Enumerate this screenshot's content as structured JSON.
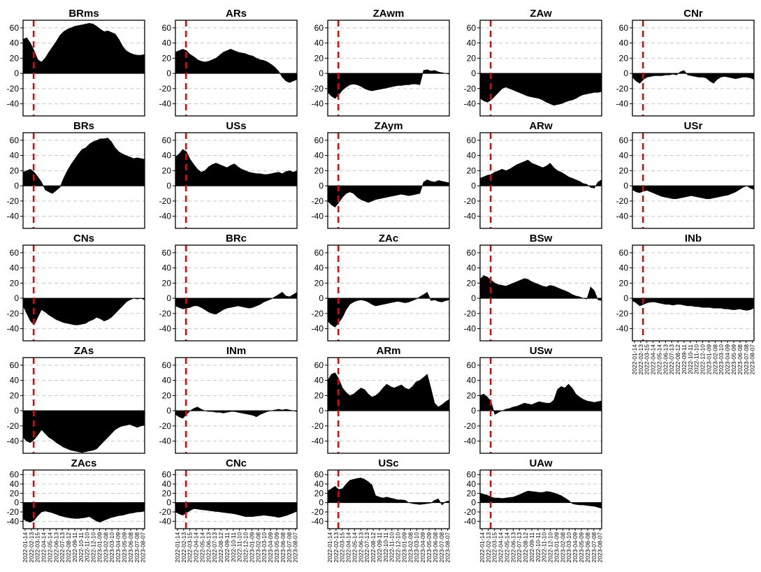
{
  "chart_data": {
    "type": "area",
    "title": "",
    "xlabel": "",
    "ylabel": "",
    "ylim": [
      -56,
      70
    ],
    "yticks": [
      -40,
      -20,
      0,
      20,
      40,
      60
    ],
    "grid": {
      "horizontal": true,
      "dashed": true
    },
    "event_line": {
      "date": "2022-02-24",
      "color": "#ee0000",
      "style": "dashed"
    },
    "x_date_ticks": [
      "2022-01-14",
      "2022-02-13",
      "2022-03-15",
      "2022-04-14",
      "2022-05-14",
      "2022-06-13",
      "2022-07-13",
      "2022-08-12",
      "2022-09-11",
      "2022-10-11",
      "2022-11-10",
      "2022-12-10",
      "2023-01-09",
      "2023-02-08",
      "2023-03-10",
      "2023-04-09",
      "2023-05-09",
      "2023-06-08",
      "2023-07-08",
      "2023-08-07"
    ],
    "x_range": [
      "2022-01-04",
      "2023-08-15"
    ],
    "panels": [
      {
        "title": "BRms",
        "row": 0,
        "col": 0,
        "values": [
          45,
          47,
          40,
          30,
          18,
          15,
          20,
          28,
          35,
          42,
          50,
          55,
          58,
          60,
          62,
          63,
          64,
          65,
          66,
          65,
          62,
          58,
          55,
          56,
          54,
          52,
          45,
          36,
          30,
          27,
          25,
          24,
          24,
          25
        ]
      },
      {
        "title": "ARs",
        "row": 0,
        "col": 1,
        "values": [
          28,
          30,
          32,
          30,
          25,
          22,
          18,
          16,
          15,
          16,
          18,
          20,
          24,
          28,
          30,
          32,
          30,
          28,
          27,
          26,
          24,
          23,
          20,
          18,
          17,
          15,
          12,
          8,
          3,
          -5,
          -10,
          -12,
          -10,
          -8
        ]
      },
      {
        "title": "ZAwm",
        "row": 0,
        "col": 2,
        "values": [
          -25,
          -30,
          -33,
          -28,
          -22,
          -18,
          -15,
          -14,
          -15,
          -17,
          -20,
          -22,
          -23,
          -22,
          -21,
          -20,
          -19,
          -18,
          -17,
          -16,
          -16,
          -15,
          -15,
          -14,
          -14,
          -15,
          4,
          5,
          3,
          4,
          2,
          1,
          0,
          -1
        ]
      },
      {
        "title": "ZAw",
        "row": 0,
        "col": 3,
        "values": [
          -33,
          -36,
          -38,
          -35,
          -30,
          -25,
          -20,
          -18,
          -20,
          -22,
          -24,
          -26,
          -28,
          -30,
          -31,
          -32,
          -33,
          -35,
          -38,
          -40,
          -42,
          -41,
          -40,
          -38,
          -36,
          -35,
          -33,
          -30,
          -28,
          -27,
          -26,
          -25,
          -25,
          -24
        ]
      },
      {
        "title": "CNr",
        "row": 0,
        "col": 4,
        "values": [
          -5,
          -10,
          -13,
          -8,
          -5,
          -4,
          -3,
          -3,
          -3,
          -2,
          -2,
          -1,
          -2,
          2,
          4,
          -2,
          -3,
          -4,
          -5,
          -5,
          -6,
          -10,
          -13,
          -8,
          -5,
          -4,
          -5,
          -6,
          -7,
          -6,
          -5,
          -5,
          -6,
          -8
        ]
      },
      {
        "title": "BRs",
        "row": 1,
        "col": 0,
        "values": [
          18,
          20,
          22,
          18,
          12,
          5,
          -5,
          -8,
          -10,
          -6,
          -2,
          10,
          20,
          28,
          35,
          42,
          48,
          50,
          55,
          58,
          60,
          62,
          62,
          63,
          58,
          50,
          45,
          42,
          40,
          38,
          36,
          37,
          36,
          35
        ]
      },
      {
        "title": "USs",
        "row": 1,
        "col": 1,
        "values": [
          38,
          42,
          48,
          45,
          35,
          28,
          22,
          18,
          20,
          25,
          28,
          30,
          28,
          26,
          24,
          27,
          29,
          25,
          22,
          20,
          18,
          17,
          16,
          16,
          15,
          15,
          16,
          17,
          18,
          16,
          19,
          20,
          18,
          20
        ]
      },
      {
        "title": "ZAym",
        "row": 1,
        "col": 2,
        "values": [
          -20,
          -25,
          -28,
          -22,
          -15,
          -10,
          -8,
          -10,
          -15,
          -18,
          -20,
          -22,
          -20,
          -18,
          -17,
          -16,
          -15,
          -14,
          -13,
          -12,
          -11,
          -12,
          -13,
          -12,
          -11,
          -10,
          5,
          8,
          6,
          5,
          7,
          6,
          5,
          4
        ]
      },
      {
        "title": "ARw",
        "row": 1,
        "col": 3,
        "values": [
          10,
          12,
          14,
          15,
          18,
          20,
          22,
          20,
          22,
          25,
          28,
          30,
          32,
          34,
          30,
          28,
          26,
          24,
          26,
          30,
          24,
          20,
          18,
          15,
          12,
          10,
          8,
          6,
          3,
          2,
          -2,
          -3,
          5,
          8
        ]
      },
      {
        "title": "USr",
        "row": 1,
        "col": 4,
        "values": [
          -5,
          -8,
          -9,
          -7,
          -6,
          -8,
          -10,
          -12,
          -14,
          -15,
          -16,
          -17,
          -17,
          -16,
          -15,
          -14,
          -13,
          -14,
          -15,
          -16,
          -17,
          -17,
          -16,
          -15,
          -14,
          -13,
          -12,
          -10,
          -8,
          -5,
          -2,
          0,
          -3,
          -5
        ]
      },
      {
        "title": "CNs",
        "row": 2,
        "col": 0,
        "values": [
          -10,
          -20,
          -30,
          -35,
          -25,
          -15,
          -18,
          -22,
          -25,
          -28,
          -30,
          -32,
          -33,
          -34,
          -35,
          -35,
          -34,
          -33,
          -30,
          -28,
          -25,
          -27,
          -30,
          -28,
          -25,
          -20,
          -15,
          -10,
          -5,
          -2,
          0,
          -1,
          0,
          -2
        ]
      },
      {
        "title": "BRc",
        "row": 2,
        "col": 1,
        "values": [
          -10,
          -12,
          -14,
          -13,
          -12,
          -10,
          -10,
          -12,
          -15,
          -18,
          -20,
          -21,
          -18,
          -15,
          -13,
          -12,
          -11,
          -10,
          -11,
          -12,
          -13,
          -12,
          -10,
          -8,
          -5,
          -3,
          -1,
          2,
          5,
          8,
          3,
          2,
          5,
          8
        ]
      },
      {
        "title": "ZAc",
        "row": 2,
        "col": 2,
        "values": [
          -30,
          -35,
          -38,
          -32,
          -25,
          -15,
          -8,
          -5,
          -3,
          -2,
          -3,
          -5,
          -8,
          -10,
          -9,
          -8,
          -7,
          -6,
          -5,
          -4,
          -5,
          -6,
          -5,
          -3,
          -1,
          2,
          5,
          8,
          -3,
          -2,
          -4,
          -5,
          -3,
          -2
        ]
      },
      {
        "title": "BSw",
        "row": 2,
        "col": 3,
        "values": [
          25,
          30,
          28,
          24,
          20,
          18,
          17,
          16,
          18,
          20,
          22,
          24,
          26,
          25,
          22,
          20,
          18,
          16,
          15,
          17,
          16,
          14,
          12,
          10,
          8,
          5,
          3,
          2,
          0,
          -1,
          15,
          10,
          -2,
          -3
        ]
      },
      {
        "title": "INb",
        "row": 2,
        "col": 4,
        "values": [
          -3,
          -6,
          -10,
          -8,
          -6,
          -5,
          -5,
          -6,
          -7,
          -8,
          -8,
          -9,
          -8,
          -8,
          -9,
          -10,
          -10,
          -11,
          -11,
          -12,
          -12,
          -12,
          -13,
          -13,
          -13,
          -14,
          -14,
          -15,
          -15,
          -14,
          -15,
          -16,
          -15,
          -13
        ]
      },
      {
        "title": "ZAs",
        "row": 3,
        "col": 0,
        "values": [
          -35,
          -40,
          -42,
          -38,
          -32,
          -25,
          -30,
          -35,
          -38,
          -42,
          -45,
          -48,
          -50,
          -52,
          -53,
          -54,
          -55,
          -54,
          -53,
          -52,
          -50,
          -45,
          -40,
          -35,
          -30,
          -25,
          -22,
          -20,
          -19,
          -18,
          -20,
          -22,
          -20,
          -19
        ]
      },
      {
        "title": "INm",
        "row": 3,
        "col": 1,
        "values": [
          -5,
          -8,
          -10,
          -5,
          0,
          3,
          5,
          2,
          0,
          -1,
          -1,
          -2,
          -2,
          -3,
          -2,
          -1,
          -1,
          -2,
          -3,
          -4,
          -5,
          -6,
          -8,
          -5,
          -3,
          -1,
          0,
          1,
          2,
          1,
          2,
          1,
          0,
          -1
        ]
      },
      {
        "title": "ARm",
        "row": 3,
        "col": 2,
        "values": [
          40,
          48,
          50,
          42,
          30,
          24,
          20,
          22,
          26,
          30,
          28,
          22,
          18,
          20,
          24,
          30,
          35,
          32,
          30,
          32,
          34,
          30,
          28,
          32,
          38,
          40,
          44,
          48,
          30,
          10,
          5,
          8,
          12,
          15
        ]
      },
      {
        "title": "USw",
        "row": 3,
        "col": 3,
        "values": [
          20,
          22,
          18,
          12,
          -5,
          -2,
          0,
          2,
          3,
          5,
          6,
          8,
          10,
          9,
          8,
          10,
          12,
          11,
          10,
          10,
          14,
          28,
          32,
          30,
          35,
          30,
          22,
          18,
          15,
          13,
          12,
          11,
          12,
          13
        ]
      },
      {
        "title": "ZAcs",
        "row": 4,
        "col": 0,
        "values": [
          -35,
          -40,
          -42,
          -38,
          -28,
          -20,
          -18,
          -20,
          -22,
          -25,
          -28,
          -30,
          -32,
          -33,
          -34,
          -34,
          -33,
          -32,
          -30,
          -35,
          -40,
          -42,
          -38,
          -35,
          -32,
          -30,
          -28,
          -27,
          -25,
          -23,
          -22,
          -20,
          -20,
          -18
        ]
      },
      {
        "title": "CNc",
        "row": 4,
        "col": 1,
        "values": [
          -20,
          -24,
          -27,
          -22,
          -17,
          -13,
          -14,
          -15,
          -16,
          -17,
          -18,
          -19,
          -20,
          -21,
          -22,
          -23,
          -24,
          -26,
          -28,
          -30,
          -30,
          -30,
          -29,
          -28,
          -27,
          -28,
          -29,
          -30,
          -32,
          -30,
          -28,
          -25,
          -22,
          -18
        ]
      },
      {
        "title": "USc",
        "row": 4,
        "col": 2,
        "values": [
          25,
          30,
          35,
          28,
          30,
          40,
          48,
          50,
          52,
          53,
          50,
          45,
          38,
          15,
          12,
          10,
          12,
          10,
          8,
          6,
          6,
          5,
          0,
          -2,
          -3,
          -4,
          -3,
          -2,
          -1,
          5,
          8,
          -5,
          2,
          4
        ]
      },
      {
        "title": "UAw",
        "row": 4,
        "col": 3,
        "values": [
          20,
          18,
          16,
          12,
          10,
          10,
          9,
          10,
          11,
          12,
          15,
          18,
          22,
          25,
          24,
          23,
          22,
          22,
          24,
          23,
          21,
          18,
          15,
          10,
          5,
          -2,
          -4,
          -5,
          -5,
          -6,
          -7,
          -8,
          -10,
          -12
        ]
      }
    ]
  }
}
